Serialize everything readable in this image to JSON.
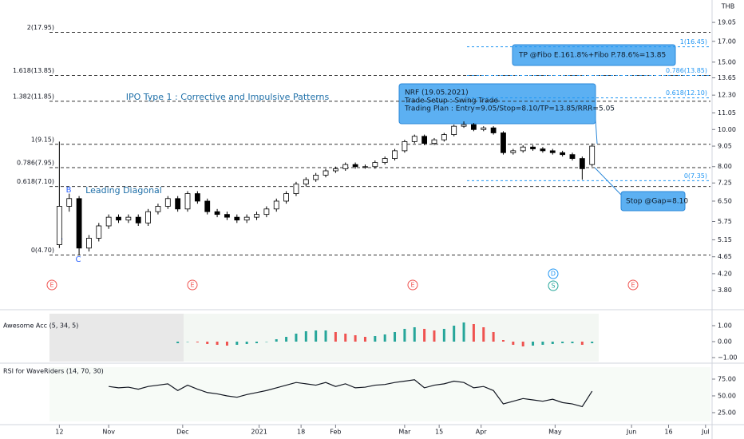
{
  "chart_data": [
    {
      "type": "candlestick",
      "title": "IPO Type 1 : Corrective and Impulsive Patterns",
      "unit": "THB",
      "x": [
        0,
        4,
        8,
        12,
        16,
        20,
        24,
        28,
        32,
        36,
        40,
        44,
        48,
        52,
        56,
        60,
        64,
        68,
        72,
        76,
        80,
        84,
        88,
        92,
        96,
        100,
        104,
        108,
        112,
        116,
        120,
        124,
        128,
        132,
        136,
        140,
        144,
        148,
        152,
        156,
        160,
        164,
        168,
        172,
        176,
        180,
        184,
        188,
        192,
        196,
        200,
        204,
        208,
        212,
        216
      ],
      "open": [
        5.0,
        6.3,
        6.6,
        4.9,
        5.2,
        5.6,
        5.9,
        5.8,
        5.9,
        5.7,
        6.1,
        6.3,
        6.6,
        6.2,
        6.8,
        6.5,
        6.1,
        6.0,
        5.9,
        5.8,
        5.9,
        6.0,
        6.2,
        6.5,
        6.8,
        7.2,
        7.4,
        7.6,
        7.8,
        7.9,
        8.1,
        8.0,
        8.0,
        8.2,
        8.4,
        8.8,
        9.3,
        9.6,
        9.2,
        9.4,
        9.7,
        10.2,
        10.3,
        10.0,
        10.1,
        9.8,
        8.7,
        8.8,
        9.0,
        8.9,
        8.8,
        8.7,
        8.6,
        8.4,
        8.1
      ],
      "high": [
        9.3,
        6.8,
        6.7,
        5.3,
        5.7,
        6.0,
        6.0,
        6.0,
        6.0,
        6.2,
        6.4,
        6.7,
        6.7,
        6.9,
        6.9,
        6.6,
        6.2,
        6.1,
        6.0,
        6.0,
        6.1,
        6.3,
        6.6,
        6.9,
        7.3,
        7.5,
        7.7,
        7.9,
        8.0,
        8.2,
        8.2,
        8.1,
        8.3,
        8.5,
        8.9,
        9.4,
        9.7,
        9.7,
        9.5,
        9.8,
        10.3,
        10.5,
        10.4,
        10.2,
        10.2,
        9.9,
        8.9,
        9.1,
        9.1,
        9.0,
        8.9,
        8.8,
        8.7,
        8.5,
        9.2
      ],
      "low": [
        4.9,
        6.1,
        4.7,
        4.8,
        5.1,
        5.5,
        5.7,
        5.7,
        5.6,
        5.6,
        6.0,
        6.2,
        6.1,
        6.1,
        6.4,
        6.0,
        5.9,
        5.8,
        5.7,
        5.7,
        5.8,
        5.9,
        6.1,
        6.4,
        6.7,
        7.1,
        7.3,
        7.5,
        7.7,
        7.8,
        7.9,
        7.9,
        7.9,
        8.1,
        8.3,
        8.7,
        9.2,
        9.1,
        9.1,
        9.3,
        9.6,
        10.1,
        9.9,
        9.9,
        9.7,
        8.6,
        8.6,
        8.7,
        8.8,
        8.7,
        8.6,
        8.5,
        8.3,
        7.4,
        8.0
      ],
      "close": [
        6.3,
        6.6,
        4.9,
        5.2,
        5.6,
        5.9,
        5.8,
        5.9,
        5.7,
        6.1,
        6.3,
        6.6,
        6.2,
        6.8,
        6.5,
        6.1,
        6.0,
        5.9,
        5.8,
        5.9,
        6.0,
        6.2,
        6.5,
        6.8,
        7.2,
        7.4,
        7.6,
        7.8,
        7.9,
        8.1,
        8.0,
        8.0,
        8.2,
        8.4,
        8.8,
        9.3,
        9.6,
        9.2,
        9.4,
        9.7,
        10.2,
        10.3,
        10.0,
        10.1,
        9.8,
        8.7,
        8.8,
        9.0,
        8.9,
        8.8,
        8.7,
        8.6,
        8.4,
        7.9,
        9.05
      ],
      "up_color": "#ffffff",
      "down_color": "#000000",
      "xlim": [
        -4,
        264
      ],
      "ylim": [
        3.6,
        21.8
      ],
      "log_scale": true,
      "grid": false,
      "yticks": [
        19.05,
        {
          "value": 17,
          "label": "17.00"
        },
        {
          "value": 15,
          "label": "15.00"
        },
        13.65,
        {
          "value": 12.3,
          "label": "12.30"
        },
        11.05,
        {
          "value": 10,
          "label": "10.00"
        },
        9.05,
        {
          "value": 8,
          "label": "8.00"
        },
        7.25,
        {
          "value": 6.5,
          "label": "6.50"
        },
        5.75,
        5.15,
        4.65,
        {
          "value": 4.2,
          "label": "4.20"
        },
        {
          "value": 3.8,
          "label": "3.80"
        }
      ],
      "xticks": [
        {
          "value": 0,
          "label": "12"
        },
        {
          "value": 20,
          "label": "Nov"
        },
        {
          "value": 50,
          "label": "Dec"
        },
        {
          "value": 81,
          "label": "2021"
        },
        {
          "value": 98,
          "label": "18"
        },
        {
          "value": 112,
          "label": "Feb"
        },
        {
          "value": 140,
          "label": "Mar"
        },
        {
          "value": 154,
          "label": "15"
        },
        {
          "value": 171,
          "label": "Apr"
        },
        {
          "value": 201,
          "label": "May"
        },
        {
          "value": 232,
          "label": "Jun"
        },
        {
          "value": 247,
          "label": "16"
        },
        {
          "value": 262,
          "label": "Jul"
        }
      ],
      "fib_levels": [
        {
          "value": 17.95,
          "label": "2(17.95)"
        },
        {
          "value": 13.85,
          "label": "1.618(13.85)"
        },
        {
          "value": 11.85,
          "label": "1.382(11.85)"
        },
        {
          "value": 9.15,
          "label": "1(9.15)"
        },
        {
          "value": 7.95,
          "label": "0.786(7.95)"
        },
        {
          "value": 7.1,
          "label": "0.618(7.10)"
        },
        {
          "value": 4.7,
          "label": "0(4.70)"
        }
      ],
      "fib_levels_2": [
        {
          "value": 16.45,
          "label": "1(16.45)"
        },
        {
          "value": 13.85,
          "label": "0.786(13.85)"
        },
        {
          "value": 12.1,
          "label": "0.618(12.10)"
        },
        {
          "value": 7.35,
          "label": "0(7.35)"
        }
      ],
      "wave_labels": [
        "A",
        "B",
        "C"
      ],
      "pattern_label": "Leading Diagonal",
      "callout_tp": "TP @Fibo E.161.8%+Fibo P.78.6%=13.85",
      "callout_plan": [
        "NRF (19.05.2021)",
        "Trade Setup : Swing Trade",
        "Trading Plan  : Entry=9.05/Stop=8.10/TP=13.85/RRR=5.05"
      ],
      "callout_stop": "Stop @Gap=8.10",
      "events": [
        "E",
        "E",
        "E",
        "E",
        "D",
        "S"
      ]
    },
    {
      "type": "histogram",
      "title": "Awesome Acc (5, 34, 5)",
      "x": [
        0,
        4,
        8,
        12,
        16,
        20,
        24,
        28,
        32,
        36,
        40,
        44,
        48,
        52,
        56,
        60,
        64,
        68,
        72,
        76,
        80,
        84,
        88,
        92,
        96,
        100,
        104,
        108,
        112,
        116,
        120,
        124,
        128,
        132,
        136,
        140,
        144,
        148,
        152,
        156,
        160,
        164,
        168,
        172,
        176,
        180,
        184,
        188,
        192,
        196,
        200,
        204,
        208,
        212,
        216
      ],
      "values": [
        null,
        null,
        null,
        null,
        null,
        null,
        null,
        null,
        null,
        null,
        null,
        null,
        -0.1,
        0.0,
        -0.05,
        -0.15,
        -0.2,
        -0.25,
        -0.2,
        -0.15,
        -0.1,
        0.0,
        0.15,
        0.3,
        0.5,
        0.65,
        0.7,
        0.7,
        0.6,
        0.5,
        0.4,
        0.3,
        0.35,
        0.45,
        0.6,
        0.8,
        0.9,
        0.8,
        0.7,
        0.8,
        1.0,
        1.2,
        1.1,
        0.9,
        0.6,
        0.1,
        -0.2,
        -0.3,
        -0.25,
        -0.2,
        -0.15,
        -0.1,
        -0.1,
        -0.2,
        -0.1
      ],
      "rise_color": "#26a69a",
      "fall_color": "#ef5350",
      "xlim": [
        -4,
        264
      ],
      "ylim": [
        -1.25,
        1.75
      ],
      "yticks": [
        {
          "value": 1,
          "label": "1.00"
        },
        {
          "value": 0,
          "label": "0.00"
        },
        {
          "value": -1,
          "label": "−1.00"
        }
      ]
    },
    {
      "type": "line",
      "title": "RSI for WaveRiders (14, 70, 30)",
      "x": [
        0,
        4,
        8,
        12,
        16,
        20,
        24,
        28,
        32,
        36,
        40,
        44,
        48,
        52,
        56,
        60,
        64,
        68,
        72,
        76,
        80,
        84,
        88,
        92,
        96,
        100,
        104,
        108,
        112,
        116,
        120,
        124,
        128,
        132,
        136,
        140,
        144,
        148,
        152,
        156,
        160,
        164,
        168,
        172,
        176,
        180,
        184,
        188,
        192,
        196,
        200,
        204,
        208,
        212,
        216
      ],
      "values": [
        null,
        null,
        null,
        null,
        null,
        64,
        62,
        63,
        60,
        64,
        66,
        68,
        58,
        66,
        60,
        55,
        53,
        50,
        48,
        52,
        55,
        58,
        62,
        66,
        70,
        68,
        66,
        70,
        64,
        68,
        62,
        63,
        66,
        67,
        70,
        72,
        74,
        62,
        66,
        68,
        72,
        70,
        62,
        64,
        58,
        38,
        42,
        46,
        44,
        42,
        45,
        40,
        38,
        34,
        57
      ],
      "color": "#131722",
      "xlim": [
        -4,
        264
      ],
      "ylim": [
        9.5,
        96.4
      ],
      "yticks": [
        {
          "value": 75,
          "label": "75.00"
        },
        {
          "value": 50,
          "label": "50.00"
        },
        {
          "value": 25,
          "label": "25.00"
        }
      ]
    }
  ]
}
